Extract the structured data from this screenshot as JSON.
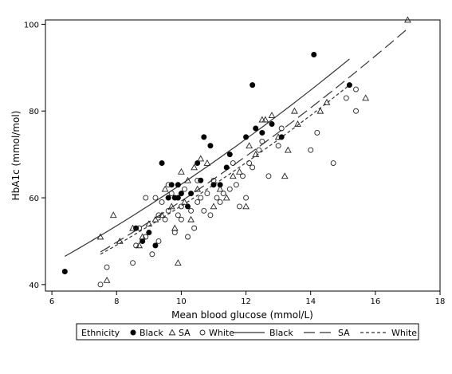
{
  "chart_data": {
    "type": "scatter",
    "xlabel": "Mean blood glucose (mmol/L)",
    "ylabel": "HbA1c (mmol/mol)",
    "xlim": [
      5.8,
      18.0
    ],
    "ylim": [
      38.5,
      101.0
    ],
    "xticks": [
      6,
      8,
      10,
      12,
      14,
      16,
      18
    ],
    "yticks": [
      40,
      60,
      80,
      100
    ],
    "grid": false,
    "legend": {
      "position": "bottom",
      "title": "Ethnicity",
      "marker_entries": [
        {
          "label": "Black",
          "marker": "filled-circle"
        },
        {
          "label": "SA",
          "marker": "triangle"
        },
        {
          "label": "White",
          "marker": "open-circle"
        }
      ],
      "line_entries": [
        {
          "label": "Black",
          "style": "solid"
        },
        {
          "label": "SA",
          "style": "long-dash"
        },
        {
          "label": "White",
          "style": "short-dash"
        }
      ]
    },
    "series": [
      {
        "name": "Black",
        "marker": "filled-circle",
        "points": [
          [
            6.4,
            43
          ],
          [
            8.6,
            53
          ],
          [
            8.8,
            50
          ],
          [
            9.0,
            52
          ],
          [
            9.2,
            49
          ],
          [
            9.4,
            68
          ],
          [
            9.7,
            63
          ],
          [
            9.8,
            60
          ],
          [
            9.9,
            63
          ],
          [
            10.0,
            61
          ],
          [
            10.3,
            61
          ],
          [
            10.5,
            68
          ],
          [
            10.7,
            74
          ],
          [
            10.9,
            72
          ],
          [
            11.0,
            63
          ],
          [
            11.4,
            67
          ],
          [
            11.5,
            70
          ],
          [
            12.0,
            74
          ],
          [
            12.2,
            86
          ],
          [
            12.5,
            75
          ],
          [
            12.8,
            77
          ],
          [
            13.1,
            74
          ],
          [
            14.1,
            93
          ],
          [
            15.2,
            86
          ],
          [
            9.9,
            60
          ],
          [
            10.6,
            64
          ],
          [
            11.2,
            63
          ],
          [
            9.6,
            60
          ],
          [
            10.2,
            58
          ],
          [
            12.3,
            76
          ]
        ],
        "fit_line": [
          [
            6.4,
            46.5
          ],
          [
            15.2,
            92
          ]
        ]
      },
      {
        "name": "SA",
        "marker": "triangle",
        "points": [
          [
            7.5,
            51
          ],
          [
            7.7,
            41
          ],
          [
            7.9,
            56
          ],
          [
            8.1,
            50
          ],
          [
            8.5,
            53
          ],
          [
            8.7,
            49
          ],
          [
            8.8,
            51
          ],
          [
            9.0,
            54
          ],
          [
            9.2,
            55
          ],
          [
            9.4,
            56
          ],
          [
            9.5,
            62
          ],
          [
            9.7,
            58
          ],
          [
            9.9,
            45
          ],
          [
            10.0,
            66
          ],
          [
            10.1,
            59
          ],
          [
            10.2,
            64
          ],
          [
            10.4,
            67
          ],
          [
            10.5,
            62
          ],
          [
            10.6,
            69
          ],
          [
            10.8,
            68
          ],
          [
            11.0,
            58
          ],
          [
            11.2,
            62
          ],
          [
            11.4,
            60
          ],
          [
            11.6,
            65
          ],
          [
            11.8,
            66
          ],
          [
            12.0,
            58
          ],
          [
            12.1,
            72
          ],
          [
            12.3,
            70
          ],
          [
            12.5,
            78
          ],
          [
            12.6,
            78
          ],
          [
            12.8,
            79
          ],
          [
            13.0,
            74
          ],
          [
            13.2,
            65
          ],
          [
            13.3,
            71
          ],
          [
            13.5,
            80
          ],
          [
            13.6,
            77
          ],
          [
            14.3,
            80
          ],
          [
            14.5,
            82
          ],
          [
            15.7,
            83
          ],
          [
            17.0,
            101
          ],
          [
            10.3,
            55
          ],
          [
            9.8,
            53
          ]
        ],
        "fit_line": [
          [
            7.5,
            47.5
          ],
          [
            17.0,
            99
          ]
        ]
      },
      {
        "name": "White",
        "marker": "open-circle",
        "points": [
          [
            7.5,
            40
          ],
          [
            7.7,
            44
          ],
          [
            8.5,
            45
          ],
          [
            8.6,
            49
          ],
          [
            8.7,
            53
          ],
          [
            8.9,
            60
          ],
          [
            9.0,
            52
          ],
          [
            9.1,
            47
          ],
          [
            9.2,
            60
          ],
          [
            9.3,
            56
          ],
          [
            9.4,
            59
          ],
          [
            9.5,
            55
          ],
          [
            9.6,
            57
          ],
          [
            9.7,
            61
          ],
          [
            9.8,
            52
          ],
          [
            9.9,
            56
          ],
          [
            10.0,
            58
          ],
          [
            10.1,
            62
          ],
          [
            10.2,
            51
          ],
          [
            10.3,
            57
          ],
          [
            10.4,
            53
          ],
          [
            10.5,
            59
          ],
          [
            10.6,
            60
          ],
          [
            10.7,
            57
          ],
          [
            10.8,
            61
          ],
          [
            10.9,
            56
          ],
          [
            11.0,
            64
          ],
          [
            11.1,
            60
          ],
          [
            11.2,
            59
          ],
          [
            11.3,
            61
          ],
          [
            11.5,
            62
          ],
          [
            11.6,
            68
          ],
          [
            11.7,
            63
          ],
          [
            11.8,
            58
          ],
          [
            11.9,
            65
          ],
          [
            12.0,
            60
          ],
          [
            12.1,
            68
          ],
          [
            12.2,
            67
          ],
          [
            12.4,
            71
          ],
          [
            12.5,
            73
          ],
          [
            12.7,
            65
          ],
          [
            13.0,
            72
          ],
          [
            13.1,
            76
          ],
          [
            14.0,
            71
          ],
          [
            14.2,
            75
          ],
          [
            14.7,
            68
          ],
          [
            15.1,
            83
          ],
          [
            15.4,
            80
          ],
          [
            15.4,
            85
          ],
          [
            9.3,
            50
          ],
          [
            9.6,
            63
          ],
          [
            10.0,
            55
          ],
          [
            10.5,
            64
          ],
          [
            8.9,
            51
          ]
        ],
        "fit_line": [
          [
            7.5,
            47
          ],
          [
            15.2,
            86
          ]
        ]
      }
    ]
  }
}
